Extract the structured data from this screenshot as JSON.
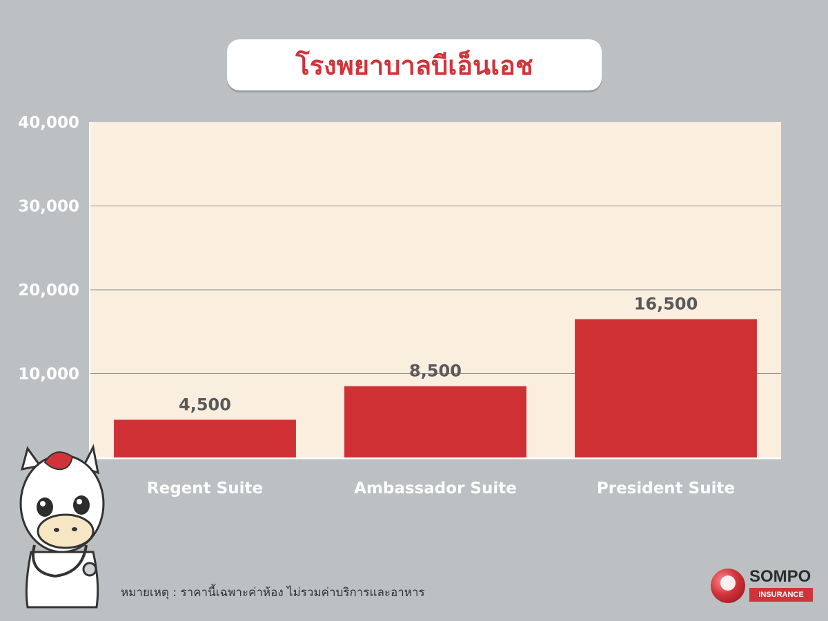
{
  "header": {
    "title": "โรงพยาบาลบีเอ็นเอช"
  },
  "chart_data": {
    "type": "bar",
    "title": "โรงพยาบาลบีเอ็นเอช",
    "categories": [
      "Regent Suite",
      "Ambassador Suite",
      "President Suite"
    ],
    "values": [
      4500,
      8500,
      16500
    ],
    "data_labels": [
      "4,500",
      "8,500",
      "16,500"
    ],
    "ylim": [
      0,
      40000
    ],
    "yticks": [
      10000,
      20000,
      30000,
      40000
    ],
    "ytick_labels": [
      "10,000",
      "20,000",
      "30,000",
      "40,000"
    ],
    "xlabel": "",
    "ylabel": "",
    "grid": true,
    "bar_color": "#cf3034",
    "plot_background": "#faeedf"
  },
  "footer": {
    "note": "หมายเหตุ : ราคานี้เฉพาะค่าห้อง ไม่รวมค่าบริการและอาหาร",
    "logo_word": "SOMPO",
    "logo_sub": "INSURANCE"
  }
}
